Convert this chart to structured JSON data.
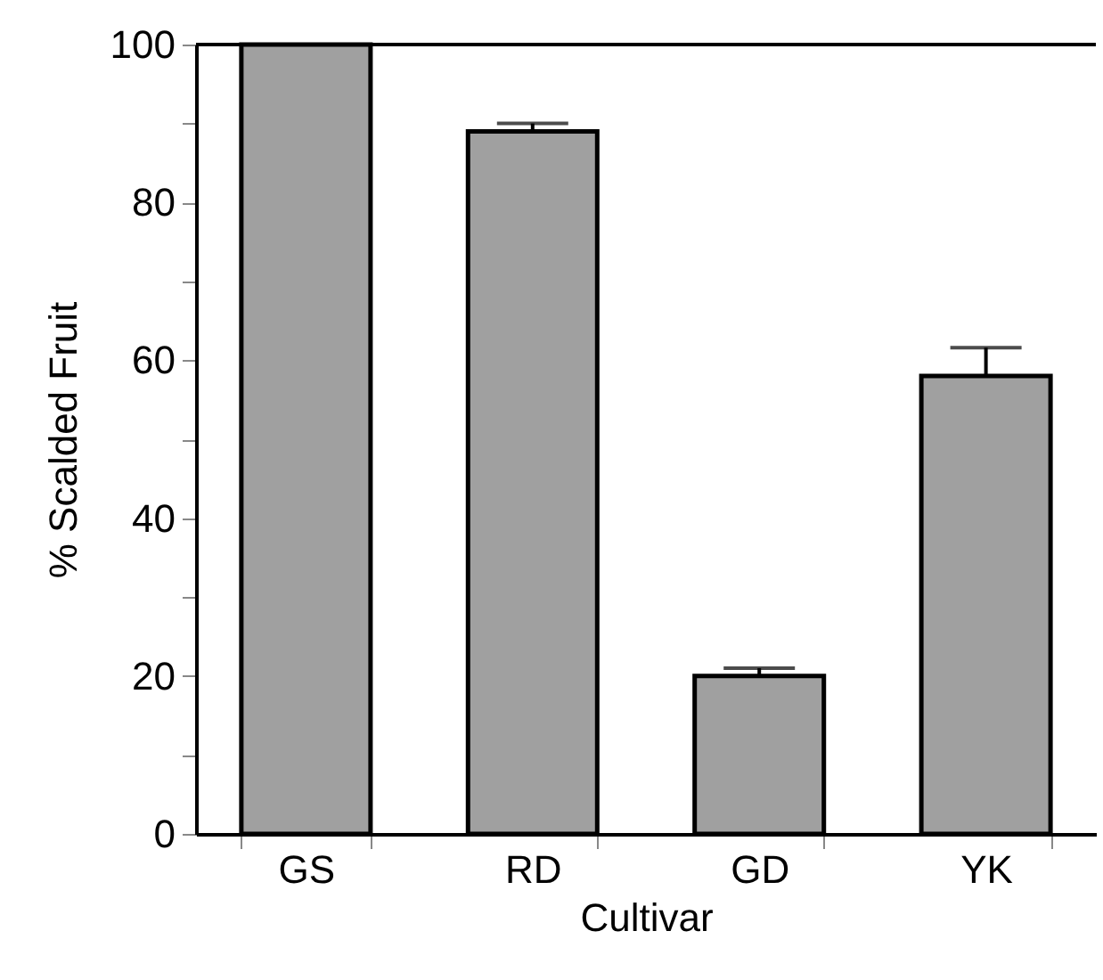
{
  "chart_data": {
    "type": "bar",
    "xlabel": "Cultivar",
    "ylabel": "% Scalded Fruit",
    "categories": [
      "GS",
      "RD",
      "GD",
      "YK"
    ],
    "values": [
      100,
      89,
      20,
      58
    ],
    "errors": [
      null,
      1,
      1,
      3.6
    ],
    "color": "#a0a0a0",
    "ylim": [
      0,
      100
    ],
    "yticks": [
      0,
      {
        "value": 10,
        "label": null
      },
      20,
      {
        "value": 30,
        "label": null
      },
      40,
      {
        "value": 50,
        "label": null
      },
      60,
      {
        "value": 70,
        "label": null
      },
      80,
      {
        "value": 90,
        "label": null
      },
      100
    ],
    "ref_lines": [
      {
        "axis": "y",
        "value": 100,
        "color": "#000000"
      }
    ]
  }
}
